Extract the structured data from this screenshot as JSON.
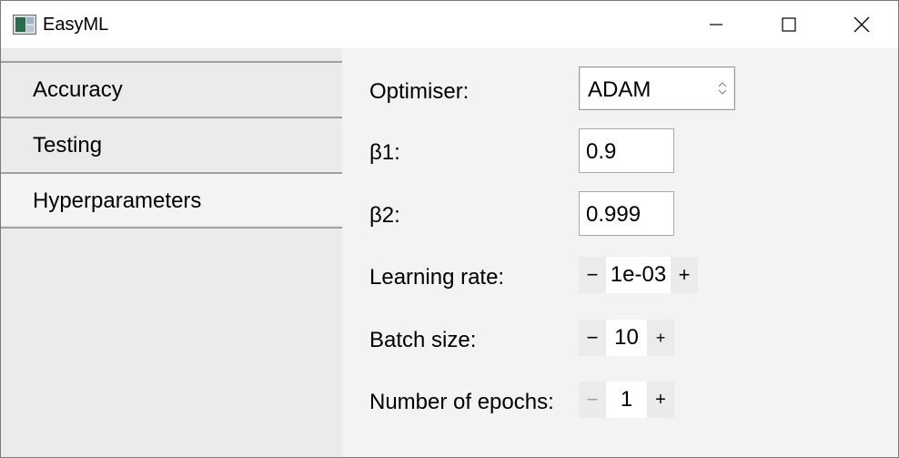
{
  "window": {
    "title": "EasyML",
    "controls": {
      "minimize": "minimize",
      "maximize": "maximize",
      "close": "close"
    }
  },
  "sidebar": {
    "items": [
      {
        "label": "Accuracy",
        "active": false
      },
      {
        "label": "Testing",
        "active": false
      },
      {
        "label": "Hyperparameters",
        "active": true
      }
    ]
  },
  "form": {
    "optimiser": {
      "label": "Optimiser:",
      "value": "ADAM"
    },
    "beta1": {
      "label": "β1:",
      "value": "0.9"
    },
    "beta2": {
      "label": "β2:",
      "value": "0.999"
    },
    "learning_rate": {
      "label": "Learning rate:",
      "value": "1e-03",
      "minus": "−",
      "plus": "+"
    },
    "batch_size": {
      "label": "Batch size:",
      "value": "10",
      "minus": "−",
      "plus": "+"
    },
    "epochs": {
      "label": "Number of epochs:",
      "value": "1",
      "minus": "−",
      "plus": "+",
      "minus_disabled": true
    }
  },
  "colors": {
    "sidebar_bg": "#ebebeb",
    "sidebar_active": "#f4f4f4",
    "content_bg": "#f3f3f3",
    "divider": "#a0a0a0"
  }
}
